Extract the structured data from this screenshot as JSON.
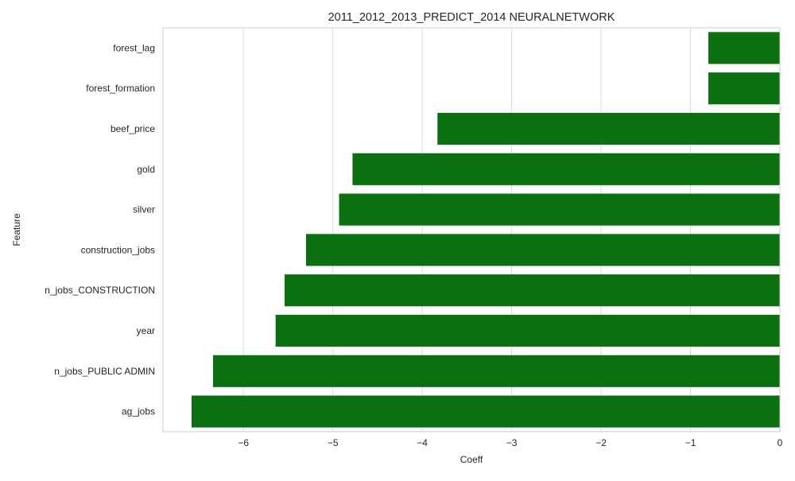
{
  "chart_data": {
    "type": "bar",
    "orientation": "horizontal",
    "title": "2011_2012_2013_PREDICT_2014 NEURALNETWORK",
    "xlabel": "Coeff",
    "ylabel": "Feature",
    "categories": [
      "forest_lag",
      "forest_formation",
      "beef_price",
      "gold",
      "silver",
      "construction_jobs",
      "n_jobs_CONSTRUCTION",
      "year",
      "n_jobs_PUBLIC ADMIN",
      "ag_jobs"
    ],
    "values": [
      -0.8,
      -0.8,
      -3.83,
      -4.78,
      -4.93,
      -5.3,
      -5.54,
      -5.64,
      -6.34,
      -6.58
    ],
    "xlim": [
      -6.9,
      0
    ],
    "xticks": [
      -6,
      -5,
      -4,
      -3,
      -2,
      -1,
      0
    ],
    "xtick_labels": [
      "−6",
      "−5",
      "−4",
      "−3",
      "−2",
      "−1",
      "0"
    ],
    "grid": "vertical",
    "bar_color": "#0a7010"
  }
}
